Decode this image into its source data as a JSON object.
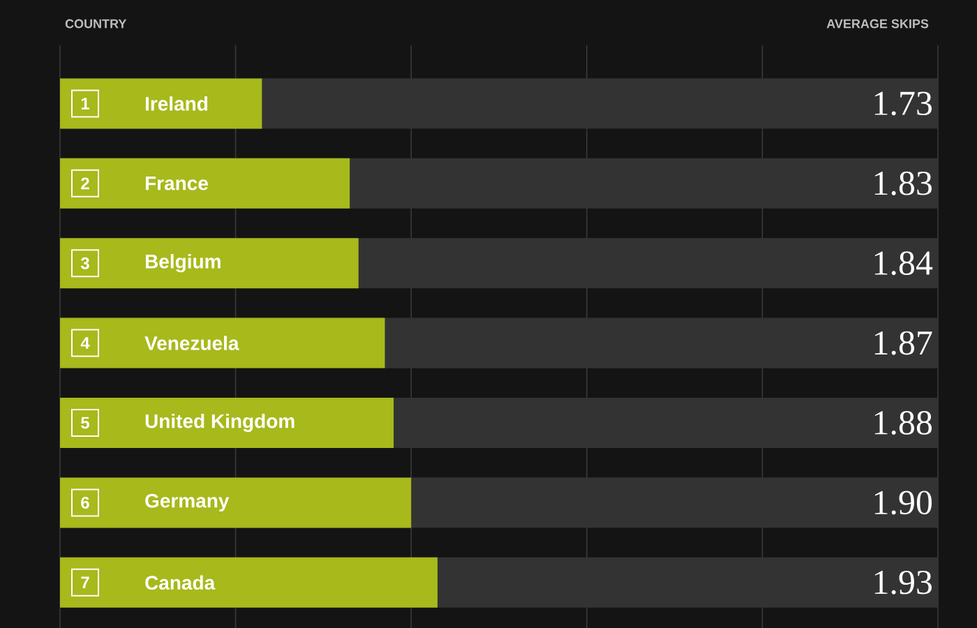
{
  "chart_data": {
    "type": "bar",
    "orientation": "horizontal",
    "ylabel": "COUNTRY",
    "xlabel": "AVERAGE SKIPS",
    "categories": [
      "Ireland",
      "France",
      "Belgium",
      "Venezuela",
      "United Kingdom",
      "Germany",
      "Canada"
    ],
    "values": [
      1.73,
      1.83,
      1.84,
      1.87,
      1.88,
      1.9,
      1.93
    ],
    "value_labels": [
      "1.73",
      "1.83",
      "1.84",
      "1.87",
      "1.88",
      "1.90",
      "1.93"
    ],
    "color": "#a7b91b",
    "xlim": [
      1.5,
      2.5
    ],
    "xticks": [
      {
        "value": 1.5,
        "label": null
      },
      {
        "value": 1.7,
        "label": null
      },
      {
        "value": 1.9,
        "label": null
      },
      {
        "value": 2.1,
        "label": null
      },
      {
        "value": 2.3,
        "label": null
      },
      {
        "value": 2.5,
        "label": null
      }
    ],
    "grid": "x",
    "tick_labels": "y",
    "annotations": [
      {
        "text": "1",
        "y": "Ireland"
      },
      {
        "text": "2",
        "y": "France"
      },
      {
        "text": "3",
        "y": "Belgium"
      },
      {
        "text": "4",
        "y": "Venezuela"
      },
      {
        "text": "5",
        "y": "United Kingdom"
      },
      {
        "text": "6",
        "y": "Germany"
      },
      {
        "text": "7",
        "y": "Canada"
      }
    ]
  }
}
